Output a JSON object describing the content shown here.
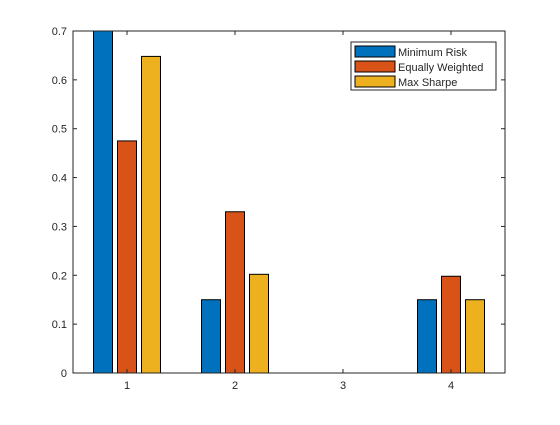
{
  "chart_data": {
    "type": "bar",
    "categories": [
      "1",
      "2",
      "3",
      "4"
    ],
    "series": [
      {
        "name": "Minimum Risk",
        "color": "#0072BD",
        "values": [
          0.7,
          0.15,
          0.0,
          0.15
        ]
      },
      {
        "name": "Equally Weighted",
        "color": "#D95319",
        "values": [
          0.475,
          0.33,
          0.0,
          0.198
        ]
      },
      {
        "name": "Max Sharpe",
        "color": "#EDB120",
        "values": [
          0.648,
          0.202,
          0.0,
          0.15
        ]
      }
    ],
    "ylim": [
      0,
      0.7
    ],
    "yticks": [
      "0",
      "0.1",
      "0.2",
      "0.3",
      "0.4",
      "0.5",
      "0.6",
      "0.7"
    ],
    "title": "",
    "xlabel": "",
    "ylabel": "",
    "grid": false,
    "legend_position": "top-right"
  }
}
